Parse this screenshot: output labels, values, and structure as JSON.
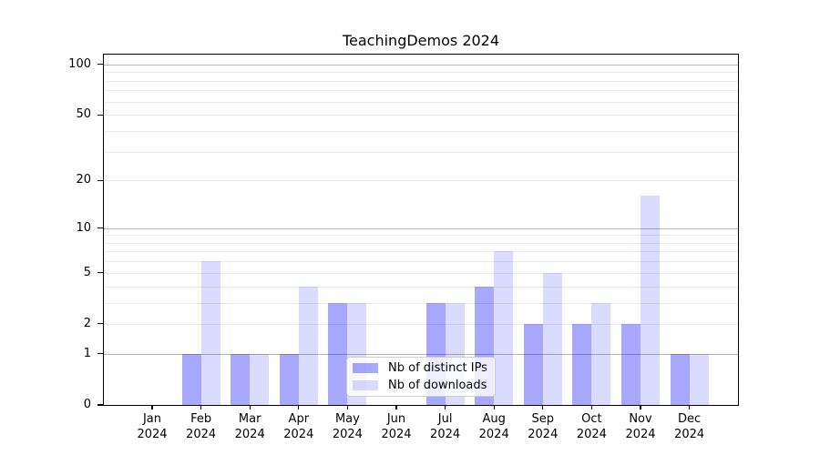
{
  "chart_data": {
    "type": "bar",
    "title": "TeachingDemos 2024",
    "categories": [
      "Jan",
      "Feb",
      "Mar",
      "Apr",
      "May",
      "Jun",
      "Jul",
      "Aug",
      "Sep",
      "Oct",
      "Nov",
      "Dec"
    ],
    "category_year": "2024",
    "series": [
      {
        "name": "Nb of distinct IPs",
        "color": "rgba(0,0,255,0.34)",
        "values": [
          0,
          1,
          1,
          1,
          3,
          0,
          3,
          4,
          2,
          2,
          2,
          1
        ]
      },
      {
        "name": "Nb of downloads",
        "color": "rgba(0,0,255,0.14)",
        "values": [
          0,
          6,
          1,
          4,
          3,
          0,
          3,
          7,
          5,
          3,
          16,
          1
        ]
      }
    ],
    "y_axis": {
      "scale": "log1p",
      "ticks": [
        0,
        1,
        2,
        5,
        10,
        20,
        50,
        100
      ],
      "ylim": [
        0,
        110
      ]
    },
    "gridlines": {
      "major": [
        1,
        10,
        100
      ],
      "minor": [
        2,
        3,
        4,
        5,
        6,
        7,
        8,
        9,
        20,
        30,
        40,
        50,
        60,
        70,
        80,
        90
      ],
      "major_color": "#b7b7b7",
      "minor_color": "#eaeaea"
    },
    "legend": {
      "position": "lower-center",
      "entries": [
        {
          "label": "Nb of distinct IPs"
        },
        {
          "label": "Nb of downloads"
        }
      ]
    },
    "xlabel": "",
    "ylabel": ""
  }
}
